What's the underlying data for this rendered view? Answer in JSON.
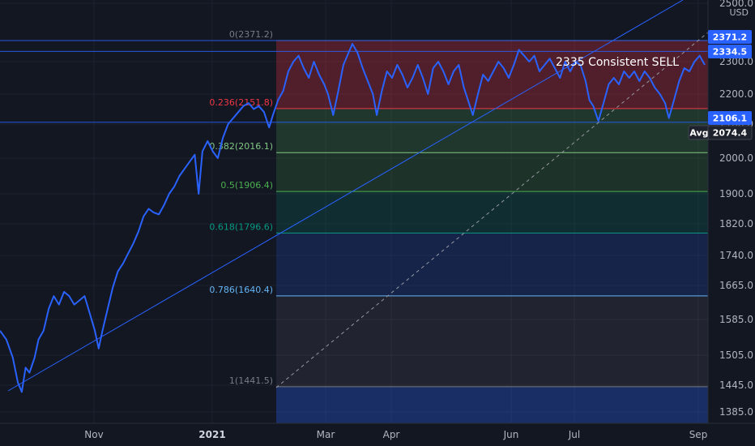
{
  "chart_data": {
    "type": "line",
    "title": "",
    "currency": "USD",
    "yaxis_ticks": [
      "1385.0",
      "1445.0",
      "1505.0",
      "1585.0",
      "1665.0",
      "1740.0",
      "1820.0",
      "1900.0",
      "2000.0",
      "2100.0",
      "2200.0",
      "2300.0",
      "2500.0"
    ],
    "xaxis_ticks": [
      {
        "label": "Nov",
        "bold": false
      },
      {
        "label": "2021",
        "bold": true
      },
      {
        "label": "Mar",
        "bold": false
      },
      {
        "label": "Apr",
        "bold": false
      },
      {
        "label": "Jun",
        "bold": false
      },
      {
        "label": "Jul",
        "bold": false
      },
      {
        "label": "Sep",
        "bold": false
      }
    ],
    "fib_levels": [
      {
        "ratio": "0",
        "value": 2371.2,
        "label": "0(2371.2)",
        "color": "#787b86"
      },
      {
        "ratio": "0.236",
        "value": 2151.8,
        "label": "0.236(2151.8)",
        "color": "#f23645"
      },
      {
        "ratio": "0.382",
        "value": 2016.1,
        "label": "0.382(2016.1)",
        "color": "#81c784"
      },
      {
        "ratio": "0.5",
        "value": 1906.4,
        "label": "0.5(1906.4)",
        "color": "#4caf50"
      },
      {
        "ratio": "0.618",
        "value": 1796.6,
        "label": "0.618(1796.6)",
        "color": "#089981"
      },
      {
        "ratio": "0.786",
        "value": 1640.4,
        "label": "0.786(1640.4)",
        "color": "#64b5f6"
      },
      {
        "ratio": "1",
        "value": 1441.5,
        "label": "1(1441.5)",
        "color": "#787b86"
      }
    ],
    "price_badges": [
      {
        "label": "2371.2",
        "value": 2371.2,
        "color": "#2962ff"
      },
      {
        "label": "2334.5",
        "value": 2334.5,
        "color": "#2962ff"
      },
      {
        "label": "2106.1",
        "value": 2106.1,
        "color": "#2962ff"
      },
      {
        "label": "Avg",
        "value": 2074.4,
        "color": "#1e222d"
      },
      {
        "label": "2074.4",
        "value": 2074.4,
        "color": "#1e222d"
      }
    ],
    "horizontal_lines": [
      2371.2,
      2334.5,
      2106.1
    ],
    "annotation": "2335 Consistent SELL",
    "series_color": "#2962ff",
    "series": [
      {
        "x": 0,
        "y": 1560
      },
      {
        "x": 0.5,
        "y": 1540
      },
      {
        "x": 1,
        "y": 1500
      },
      {
        "x": 1.4,
        "y": 1450
      },
      {
        "x": 1.7,
        "y": 1430
      },
      {
        "x": 2.0,
        "y": 1480
      },
      {
        "x": 2.3,
        "y": 1470
      },
      {
        "x": 2.7,
        "y": 1500
      },
      {
        "x": 3.0,
        "y": 1540
      },
      {
        "x": 3.4,
        "y": 1560
      },
      {
        "x": 3.8,
        "y": 1610
      },
      {
        "x": 4.2,
        "y": 1640
      },
      {
        "x": 4.6,
        "y": 1620
      },
      {
        "x": 5.0,
        "y": 1650
      },
      {
        "x": 5.4,
        "y": 1640
      },
      {
        "x": 5.8,
        "y": 1620
      },
      {
        "x": 6.2,
        "y": 1630
      },
      {
        "x": 6.6,
        "y": 1640
      },
      {
        "x": 7.0,
        "y": 1600
      },
      {
        "x": 7.4,
        "y": 1560
      },
      {
        "x": 7.7,
        "y": 1520
      },
      {
        "x": 8.0,
        "y": 1560
      },
      {
        "x": 8.4,
        "y": 1610
      },
      {
        "x": 8.8,
        "y": 1660
      },
      {
        "x": 9.2,
        "y": 1700
      },
      {
        "x": 9.6,
        "y": 1720
      },
      {
        "x": 10.0,
        "y": 1745
      },
      {
        "x": 10.4,
        "y": 1770
      },
      {
        "x": 10.8,
        "y": 1800
      },
      {
        "x": 11.2,
        "y": 1840
      },
      {
        "x": 11.6,
        "y": 1860
      },
      {
        "x": 12.0,
        "y": 1850
      },
      {
        "x": 12.4,
        "y": 1845
      },
      {
        "x": 12.8,
        "y": 1870
      },
      {
        "x": 13.2,
        "y": 1900
      },
      {
        "x": 13.6,
        "y": 1920
      },
      {
        "x": 14.0,
        "y": 1950
      },
      {
        "x": 14.4,
        "y": 1970
      },
      {
        "x": 14.8,
        "y": 1990
      },
      {
        "x": 15.2,
        "y": 2010
      },
      {
        "x": 15.5,
        "y": 1900
      },
      {
        "x": 15.8,
        "y": 2020
      },
      {
        "x": 16.2,
        "y": 2050
      },
      {
        "x": 16.6,
        "y": 2020
      },
      {
        "x": 17.0,
        "y": 2000
      },
      {
        "x": 17.4,
        "y": 2060
      },
      {
        "x": 17.8,
        "y": 2100
      },
      {
        "x": 18.2,
        "y": 2120
      },
      {
        "x": 18.6,
        "y": 2140
      },
      {
        "x": 19.0,
        "y": 2160
      },
      {
        "x": 19.4,
        "y": 2170
      },
      {
        "x": 19.8,
        "y": 2150
      },
      {
        "x": 20.2,
        "y": 2160
      },
      {
        "x": 20.6,
        "y": 2140
      },
      {
        "x": 21.0,
        "y": 2090
      },
      {
        "x": 21.3,
        "y": 2130
      },
      {
        "x": 21.7,
        "y": 2180
      },
      {
        "x": 22.1,
        "y": 2210
      },
      {
        "x": 22.5,
        "y": 2270
      },
      {
        "x": 22.9,
        "y": 2300
      },
      {
        "x": 23.3,
        "y": 2320
      },
      {
        "x": 23.7,
        "y": 2280
      },
      {
        "x": 24.1,
        "y": 2250
      },
      {
        "x": 24.5,
        "y": 2300
      },
      {
        "x": 24.9,
        "y": 2260
      },
      {
        "x": 25.3,
        "y": 2230
      },
      {
        "x": 25.6,
        "y": 2200
      },
      {
        "x": 26.0,
        "y": 2130
      },
      {
        "x": 26.4,
        "y": 2210
      },
      {
        "x": 26.8,
        "y": 2290
      },
      {
        "x": 27.2,
        "y": 2330
      },
      {
        "x": 27.5,
        "y": 2360
      },
      {
        "x": 27.9,
        "y": 2330
      },
      {
        "x": 28.3,
        "y": 2280
      },
      {
        "x": 28.7,
        "y": 2240
      },
      {
        "x": 29.1,
        "y": 2200
      },
      {
        "x": 29.4,
        "y": 2130
      },
      {
        "x": 29.8,
        "y": 2210
      },
      {
        "x": 30.2,
        "y": 2270
      },
      {
        "x": 30.6,
        "y": 2250
      },
      {
        "x": 31.0,
        "y": 2290
      },
      {
        "x": 31.4,
        "y": 2260
      },
      {
        "x": 31.8,
        "y": 2220
      },
      {
        "x": 32.2,
        "y": 2250
      },
      {
        "x": 32.6,
        "y": 2290
      },
      {
        "x": 33.0,
        "y": 2250
      },
      {
        "x": 33.4,
        "y": 2200
      },
      {
        "x": 33.8,
        "y": 2280
      },
      {
        "x": 34.2,
        "y": 2300
      },
      {
        "x": 34.6,
        "y": 2270
      },
      {
        "x": 35.0,
        "y": 2230
      },
      {
        "x": 35.4,
        "y": 2270
      },
      {
        "x": 35.8,
        "y": 2290
      },
      {
        "x": 36.2,
        "y": 2220
      },
      {
        "x": 36.6,
        "y": 2170
      },
      {
        "x": 36.9,
        "y": 2130
      },
      {
        "x": 37.3,
        "y": 2200
      },
      {
        "x": 37.7,
        "y": 2260
      },
      {
        "x": 38.1,
        "y": 2240
      },
      {
        "x": 38.5,
        "y": 2270
      },
      {
        "x": 38.9,
        "y": 2300
      },
      {
        "x": 39.3,
        "y": 2280
      },
      {
        "x": 39.7,
        "y": 2250
      },
      {
        "x": 40.1,
        "y": 2290
      },
      {
        "x": 40.5,
        "y": 2340
      },
      {
        "x": 40.9,
        "y": 2320
      },
      {
        "x": 41.3,
        "y": 2300
      },
      {
        "x": 41.7,
        "y": 2320
      },
      {
        "x": 42.1,
        "y": 2270
      },
      {
        "x": 42.5,
        "y": 2290
      },
      {
        "x": 42.9,
        "y": 2310
      },
      {
        "x": 43.3,
        "y": 2280
      },
      {
        "x": 43.7,
        "y": 2250
      },
      {
        "x": 44.1,
        "y": 2300
      },
      {
        "x": 44.5,
        "y": 2270
      },
      {
        "x": 44.9,
        "y": 2300
      },
      {
        "x": 45.3,
        "y": 2290
      },
      {
        "x": 45.7,
        "y": 2240
      },
      {
        "x": 46.0,
        "y": 2180
      },
      {
        "x": 46.3,
        "y": 2160
      },
      {
        "x": 46.7,
        "y": 2110
      },
      {
        "x": 47.1,
        "y": 2170
      },
      {
        "x": 47.5,
        "y": 2230
      },
      {
        "x": 47.9,
        "y": 2250
      },
      {
        "x": 48.3,
        "y": 2230
      },
      {
        "x": 48.7,
        "y": 2270
      },
      {
        "x": 49.1,
        "y": 2250
      },
      {
        "x": 49.5,
        "y": 2270
      },
      {
        "x": 49.9,
        "y": 2240
      },
      {
        "x": 50.3,
        "y": 2270
      },
      {
        "x": 50.7,
        "y": 2250
      },
      {
        "x": 51.1,
        "y": 2220
      },
      {
        "x": 51.5,
        "y": 2200
      },
      {
        "x": 51.9,
        "y": 2170
      },
      {
        "x": 52.2,
        "y": 2120
      },
      {
        "x": 52.6,
        "y": 2180
      },
      {
        "x": 53.0,
        "y": 2240
      },
      {
        "x": 53.4,
        "y": 2280
      },
      {
        "x": 53.8,
        "y": 2270
      },
      {
        "x": 54.2,
        "y": 2300
      },
      {
        "x": 54.6,
        "y": 2320
      },
      {
        "x": 55.0,
        "y": 2290
      }
    ]
  }
}
